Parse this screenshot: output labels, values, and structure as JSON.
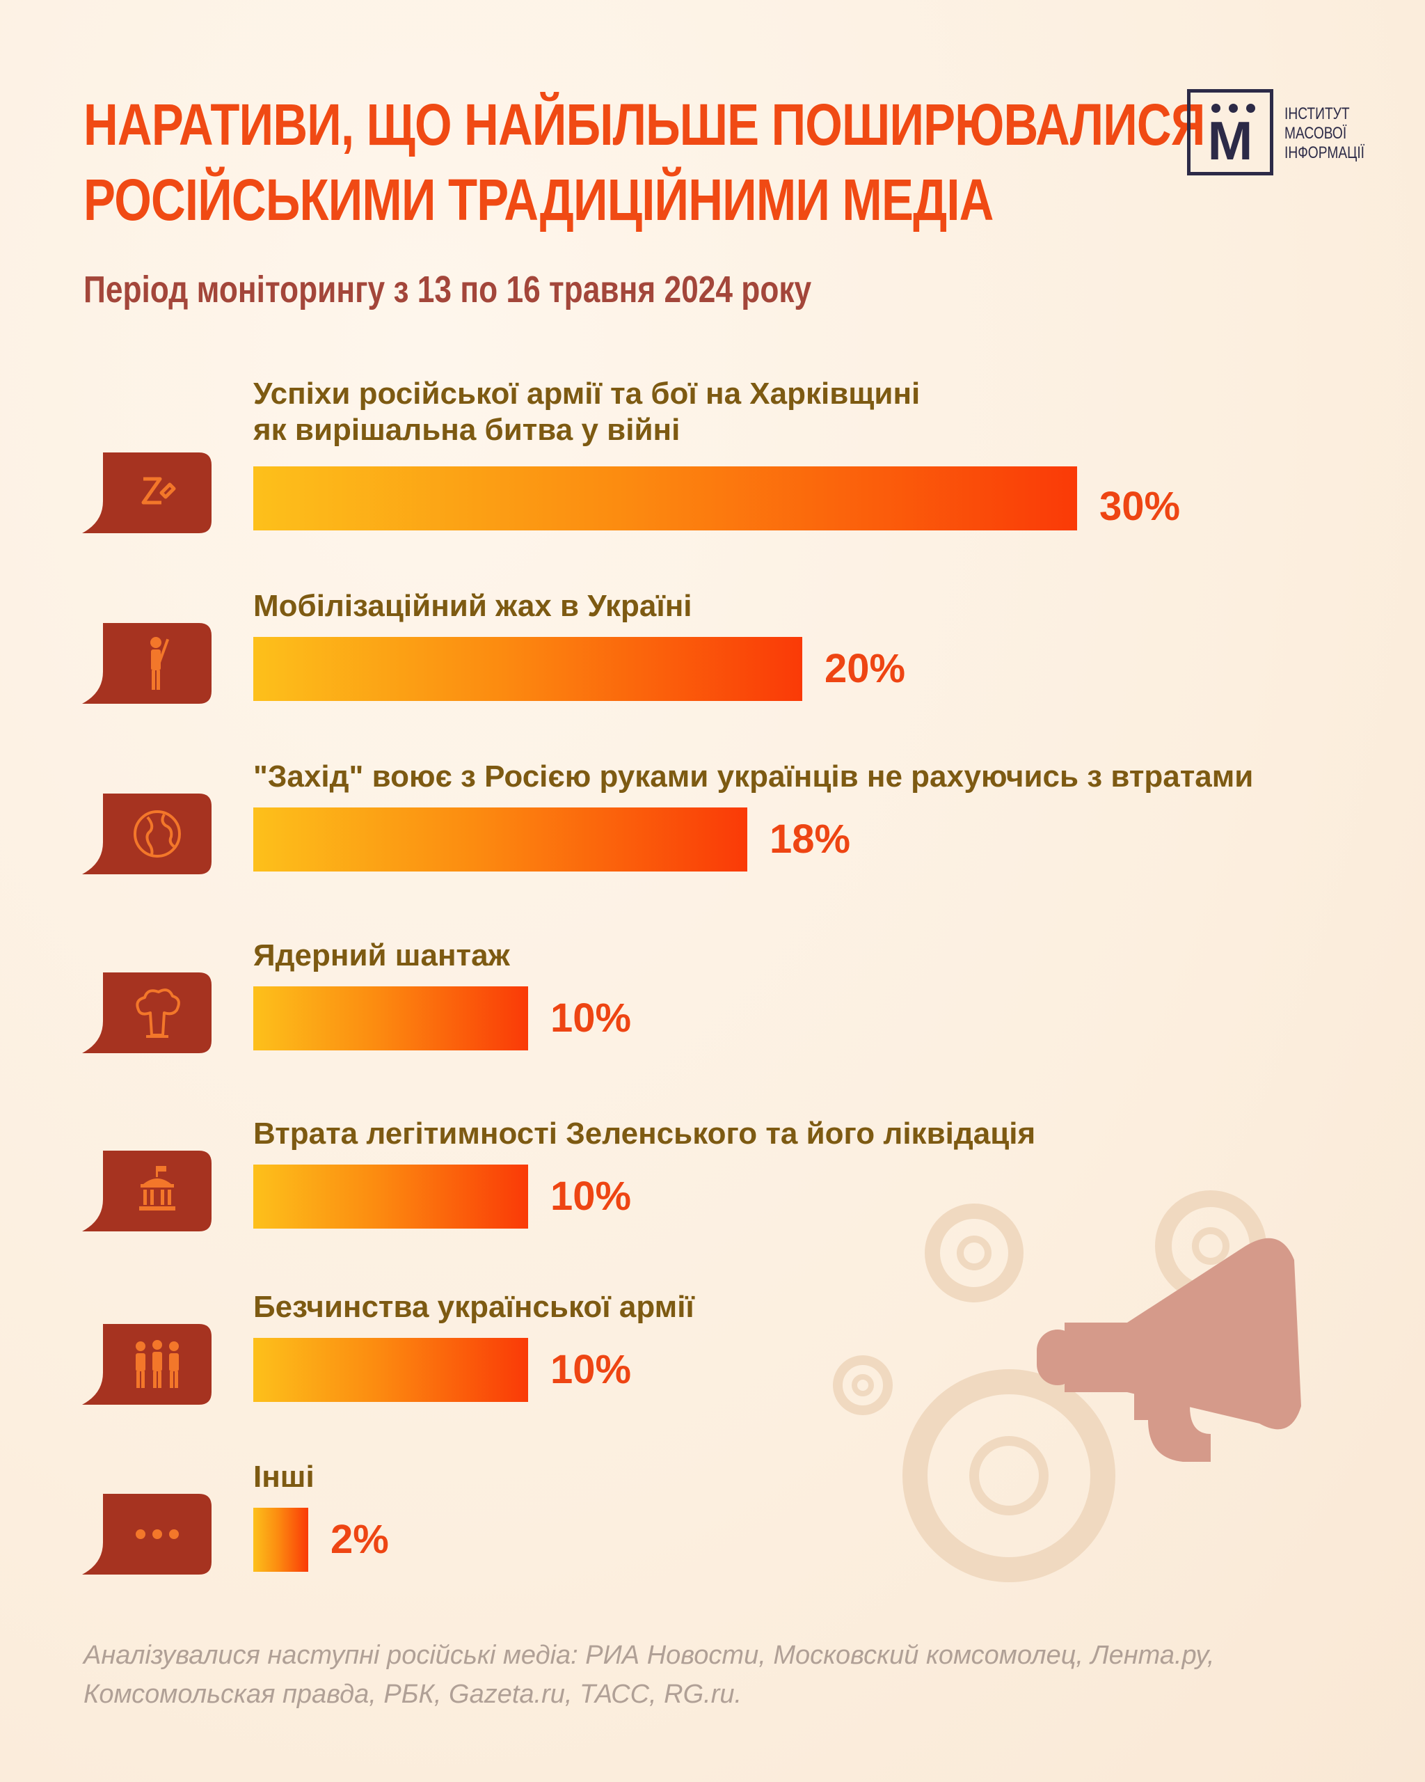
{
  "header": {
    "title_line1": "НАРАТИВИ, ЩО НАЙБІЛЬШЕ ПОШИРЮВАЛИСЯ",
    "title_line2": "РОСІЙСЬКИМИ ТРАДИЦІЙНИМИ МЕДІА",
    "subtitle": "Період моніторингу з 13 по 16 травня 2024 року"
  },
  "logo": {
    "glyph": "M",
    "line1": "ІНСТИТУТ",
    "line2": "МАСОВОЇ",
    "line3": "ІНФОРМАЦІЇ",
    "color": "#2c2a47"
  },
  "chart_data": {
    "type": "bar",
    "orientation": "horizontal",
    "title": "НАРАТИВИ, ЩО НАЙБІЛЬШЕ ПОШИРЮВАЛИСЯ РОСІЙСЬКИМИ ТРАДИЦІЙНИМИ МЕДІА",
    "subtitle": "Період моніторингу з 13 по 16 травня 2024 року",
    "unit": "%",
    "categories": [
      "Успіхи російської армії та бої на Харківщині як вирішальна битва у війні",
      "Мобілізаційний жах в Україні",
      "\"Захід\" воює з Росією руками українців не рахуючись з втратами",
      "Ядерний шантаж",
      "Втрата легітимності Зеленського та його ліквідація",
      "Безчинства української армії",
      "Інші"
    ],
    "values": [
      30,
      20,
      18,
      10,
      10,
      10,
      2
    ],
    "xlim": [
      0,
      30
    ],
    "grid": false,
    "legend": "none",
    "colors": {
      "bar_start": "#fdc01b",
      "bar_end": "#fa3a07",
      "badge": "#a63320",
      "icon": "#f3772a",
      "value_label": "#ee4513",
      "category_label": "#7d5a12"
    },
    "rows": [
      {
        "label_lines": [
          "Успіхи російської армії та бої на Харківщині",
          "як вирішальна битва у війні"
        ],
        "value": 30,
        "value_label": "30%",
        "icon": "z-symbol-icon"
      },
      {
        "label_lines": [
          "Мобілізаційний жах в Україні"
        ],
        "value": 20,
        "value_label": "20%",
        "icon": "soldier-icon"
      },
      {
        "label_lines": [
          "\"Захід\" воює з Росією руками українців не рахуючись з втратами"
        ],
        "value": 18,
        "value_label": "18%",
        "icon": "globe-icon"
      },
      {
        "label_lines": [
          "Ядерний шантаж"
        ],
        "value": 10,
        "value_label": "10%",
        "icon": "nuclear-explosion-icon"
      },
      {
        "label_lines": [
          "Втрата легітимності Зеленського та його ліквідація"
        ],
        "value": 10,
        "value_label": "10%",
        "icon": "government-building-icon"
      },
      {
        "label_lines": [
          "Безчинства української армії"
        ],
        "value": 10,
        "value_label": "10%",
        "icon": "soldiers-group-icon"
      },
      {
        "label_lines": [
          "Інші"
        ],
        "value": 2,
        "value_label": "2%",
        "icon": "ellipsis-icon"
      }
    ]
  },
  "footnote": {
    "line1": "Аналізувалися наступні російські медіа:  РИА Новости, Московский комсомолец, Лента.ру,",
    "line2": "Комсомольская правда, РБК, Gazeta.ru, ТАСС, RG.ru."
  },
  "decoration": {
    "icons": [
      "megaphone-icon",
      "gear-icon"
    ],
    "megaphone_color": "#d59a8a",
    "gear_color": "#f0d9c0"
  }
}
